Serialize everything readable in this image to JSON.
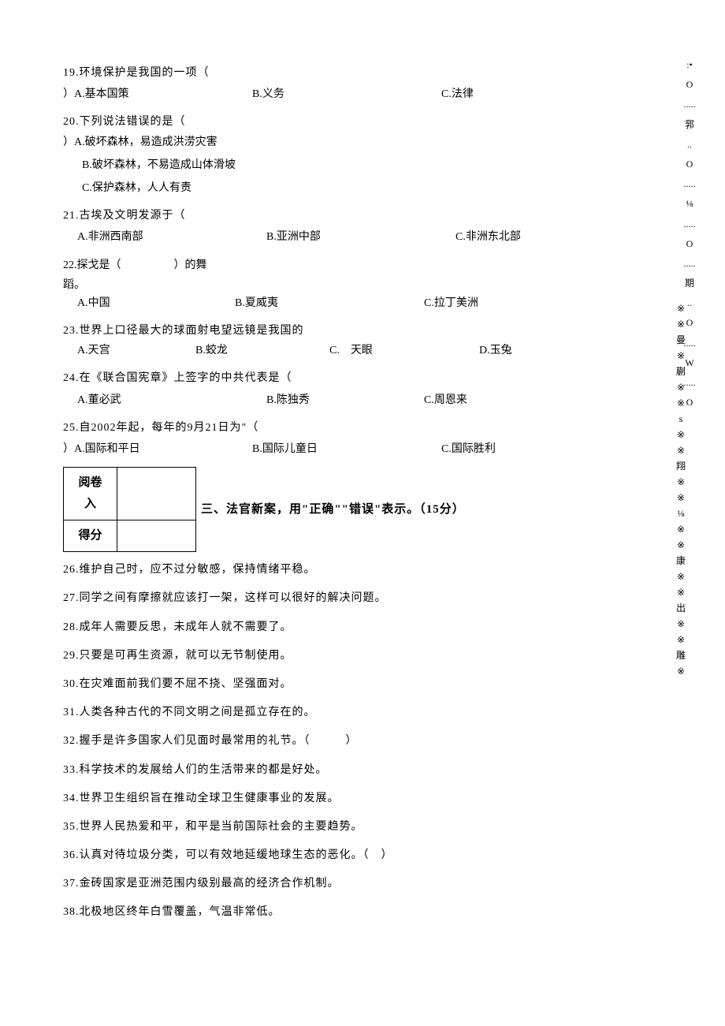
{
  "questions": {
    "q19": {
      "text": "19.环境保护是我国的一项（",
      "a": "）A.基本国策",
      "b": "B.义务",
      "c": "C.法律"
    },
    "q20": {
      "text": "20.下列说法错误的是（",
      "a": "）A.破坏森林，易造成洪涝灾害",
      "b": "B.破坏森林，不易造成山体滑坡",
      "c": "C.保护森林，人人有责"
    },
    "q21": {
      "text": "21.古埃及文明发源于（",
      "a": "A.非洲西南部",
      "b": "B.亚洲中部",
      "c": "C.非洲东北部"
    },
    "q22": {
      "text1": "22.探戈是（",
      "text2": "）的舞",
      "text3": "蹈。",
      "a": "A.中国",
      "b": "B.夏威夷",
      "c": "C.拉丁美洲"
    },
    "q23": {
      "text": "23.世界上口径最大的球面射电望远镜是我国的",
      "a": "A.天宫",
      "b": "B.蛟龙",
      "c": "C.　天眼",
      "d": "D.玉兔"
    },
    "q24": {
      "text": "24.在《联合国宪章》上签字的中共代表是（",
      "a": "A.董必武",
      "b": "B.陈独秀",
      "c": "C.周恩来"
    },
    "q25": {
      "text": "25.自2002年起，每年的9月21日为\"（",
      "a": "）A.国际和平日",
      "b": "B.国际儿童日",
      "c": "C.国际胜利"
    }
  },
  "scoreBox": {
    "row1": "阅卷入",
    "row2": "得分"
  },
  "section3Title": "三、法官新案，用\"正确\"\"错误\"表示。（15分）",
  "tf": {
    "t26": "26.维护自己时，应不过分敏感，保持情绪平稳。",
    "t27": "27.同学之间有摩擦就应该打一架，这样可以很好的解决问题。",
    "t28": "28.成年人需要反思，未成年人就不需要了。",
    "t29": "29.只要是可再生资源，就可以无节制使用。",
    "t30": "30.在灾难面前我们要不屈不挠、坚强面对。",
    "t31": "31.人类各种古代的不同文明之间是孤立存在的。",
    "t32": "32.握手是许多国家人们见面时最常用的礼节。（　　　）",
    "t33": "33.科学技术的发展给人们的生活带来的都是好处。",
    "t34": "34.世界卫生组织旨在推动全球卫生健康事业的发展。",
    "t35": "35.世界人民热爱和平，和平是当前国际社会的主要趋势。",
    "t36": "36.认真对待垃圾分类，可以有效地延缓地球生态的恶化。（　）",
    "t37": "37.金砖国家是亚洲范围内级别最高的经济合作机制。",
    "t38": "38.北极地区终年白雪覆盖，气温非常低。"
  },
  "rightMargin": [
    ":•",
    "O",
    ".....",
    "郛",
    "..",
    "O",
    ".....",
    "⅛",
    ".....",
    "O",
    ".....",
    "期",
    "..",
    "O",
    ".....",
    "W",
    ".....",
    "O"
  ],
  "decoChars": [
    "※",
    "※",
    "曼",
    "※",
    "蒯",
    "※",
    "※",
    "s",
    "※",
    "※",
    "翔",
    "※",
    "※",
    "⅛",
    "※",
    "※",
    "康",
    "※",
    "※",
    "出",
    "※",
    "※",
    "雕",
    "※"
  ]
}
